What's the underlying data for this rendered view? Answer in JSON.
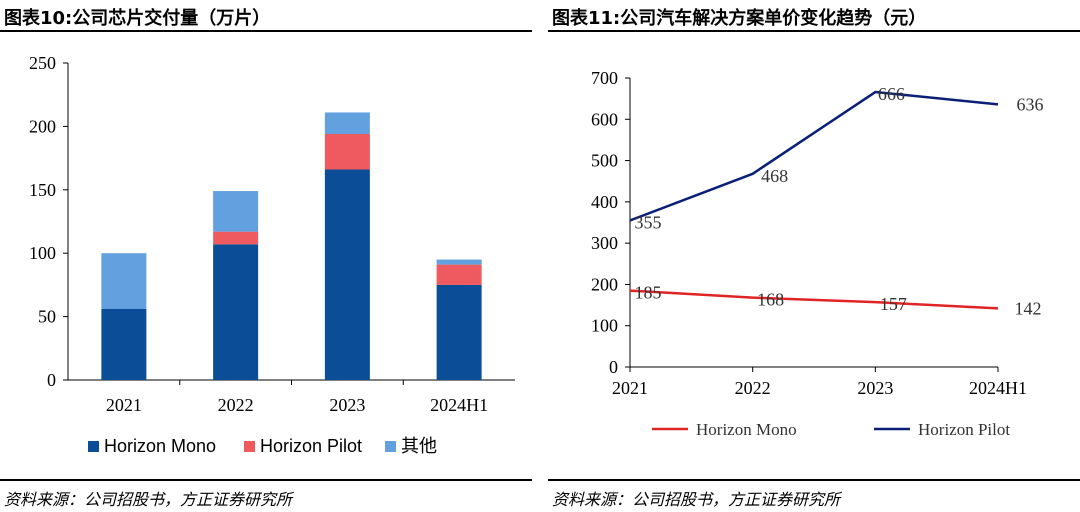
{
  "left": {
    "title": "图表10:公司芯片交付量（万片）",
    "source": "资料来源：公司招股书，方正证券研究所",
    "chart_data": {
      "type": "bar",
      "stacked": true,
      "title": "图表10:公司芯片交付量（万片）",
      "categories": [
        "2021",
        "2022",
        "2023",
        "2024H1"
      ],
      "series": [
        {
          "name": "Horizon Mono",
          "color": "#0B4D96",
          "values": [
            56,
            107,
            166,
            75
          ]
        },
        {
          "name": "Horizon Pilot",
          "color": "#EE5A5E",
          "values": [
            0,
            10,
            28,
            16
          ]
        },
        {
          "name": "其他",
          "color": "#62A0DF",
          "values": [
            44,
            32,
            17,
            4
          ]
        }
      ],
      "ylim": [
        0,
        250
      ],
      "yticks": [
        0,
        50,
        100,
        150,
        200,
        250
      ],
      "grid": false,
      "legend_position": "bottom"
    }
  },
  "right": {
    "title": "图表11:公司汽车解决方案单价变化趋势（元）",
    "source": "资料来源：公司招股书，方正证券研究所",
    "chart_data": {
      "type": "line",
      "title": "图表11:公司汽车解决方案单价变化趋势（元）",
      "x": [
        "2021",
        "2022",
        "2023",
        "2024H1"
      ],
      "series": [
        {
          "name": "Horizon Mono",
          "color": "#E02424",
          "values": [
            185,
            168,
            157,
            142
          ],
          "labels": [
            "185",
            "168",
            "157",
            "142"
          ]
        },
        {
          "name": "Horizon Pilot",
          "color": "#0A1F78",
          "values": [
            355,
            468,
            666,
            636
          ],
          "labels": [
            "355",
            "468",
            "666",
            "636"
          ]
        }
      ],
      "ylim": [
        0,
        700
      ],
      "yticks": [
        0,
        100,
        200,
        300,
        400,
        500,
        600,
        700
      ],
      "grid": false,
      "legend_position": "bottom"
    }
  }
}
